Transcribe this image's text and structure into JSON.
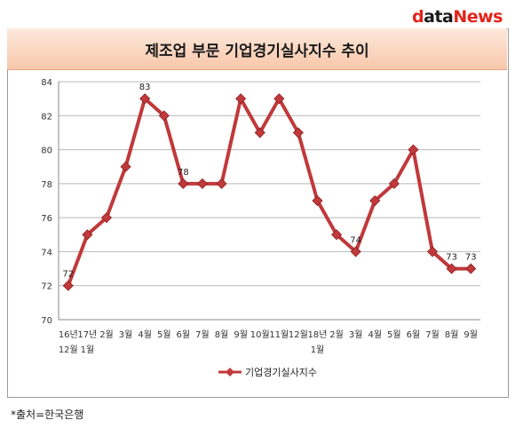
{
  "brand": {
    "prefix": "d",
    "middle": "ata",
    "suffix": "News"
  },
  "source": "*출처=한국은행",
  "chart_data": {
    "type": "line",
    "title": "제조업 부문 기업경기실사지수 추이",
    "categories": [
      "16년 12월",
      "17년 1월",
      "2월",
      "3월",
      "4월",
      "5월",
      "6월",
      "7월",
      "8월",
      "9월",
      "10월",
      "11월",
      "12월",
      "18년 1월",
      "2월",
      "3월",
      "4월",
      "5월",
      "6월",
      "7월",
      "8월",
      "9월"
    ],
    "category_lines": [
      [
        "16년",
        "12월"
      ],
      [
        "17년",
        "1월"
      ],
      [
        "2월"
      ],
      [
        "3월"
      ],
      [
        "4월"
      ],
      [
        "5월"
      ],
      [
        "6월"
      ],
      [
        "7월"
      ],
      [
        "8월"
      ],
      [
        "9월"
      ],
      [
        "10월"
      ],
      [
        "11월"
      ],
      [
        "12월"
      ],
      [
        "18년",
        "1월"
      ],
      [
        "2월"
      ],
      [
        "3월"
      ],
      [
        "4월"
      ],
      [
        "5월"
      ],
      [
        "6월"
      ],
      [
        "7월"
      ],
      [
        "8월"
      ],
      [
        "9월"
      ]
    ],
    "series": [
      {
        "name": "기업경기실사지수",
        "values": [
          72,
          75,
          76,
          79,
          83,
          82,
          78,
          78,
          78,
          83,
          81,
          83,
          81,
          77,
          75,
          74,
          77,
          78,
          80,
          74,
          73,
          73
        ]
      }
    ],
    "data_labels": [
      {
        "index": 0,
        "text": "72"
      },
      {
        "index": 4,
        "text": "83"
      },
      {
        "index": 6,
        "text": "78"
      },
      {
        "index": 15,
        "text": "74"
      },
      {
        "index": 20,
        "text": "73"
      },
      {
        "index": 21,
        "text": "73"
      }
    ],
    "ylim": [
      70,
      84
    ],
    "yticks": [
      "70",
      "72",
      "74",
      "76",
      "78",
      "80",
      "82",
      "84"
    ],
    "grid": true,
    "legend": "bottom-center",
    "colors": {
      "line": "#c0393b",
      "marker": "#c0393b",
      "grid": "#b8b8b8"
    }
  }
}
